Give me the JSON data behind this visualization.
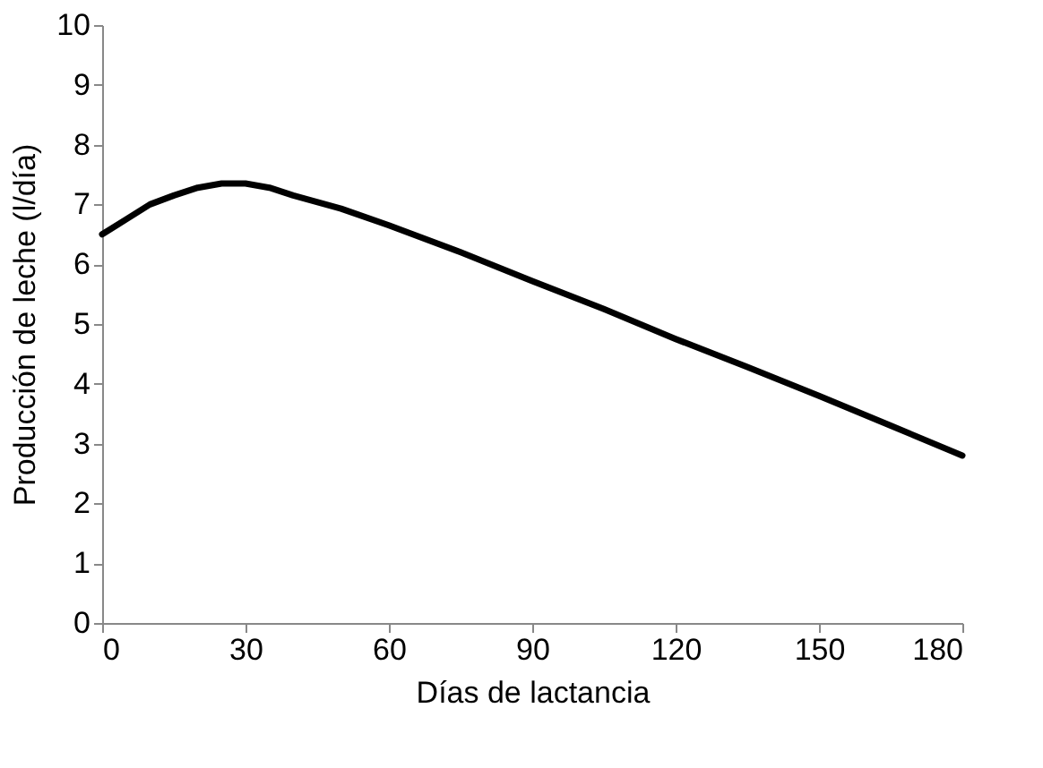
{
  "chart_data": {
    "type": "line",
    "xlabel": "Días de lactancia",
    "ylabel": "Producción de leche (l/día)",
    "x": [
      0,
      5,
      10,
      15,
      20,
      25,
      30,
      35,
      40,
      50,
      60,
      75,
      90,
      105,
      120,
      135,
      150,
      165,
      180
    ],
    "series": [
      {
        "color": "#000000",
        "values": [
          6.5,
          6.75,
          7.0,
          7.15,
          7.28,
          7.35,
          7.35,
          7.28,
          7.15,
          6.93,
          6.65,
          6.2,
          5.72,
          5.25,
          4.75,
          4.28,
          3.8,
          3.3,
          2.8
        ]
      }
    ],
    "xlim": [
      0,
      180
    ],
    "xticks": [
      0,
      30,
      60,
      90,
      120,
      150,
      180
    ],
    "ylim": [
      0,
      10
    ],
    "yticks": [
      0,
      1,
      2,
      3,
      4,
      5,
      6,
      7,
      8,
      9,
      10
    ],
    "grid": false,
    "marker": "none",
    "line_style": "solid",
    "legend": false
  }
}
